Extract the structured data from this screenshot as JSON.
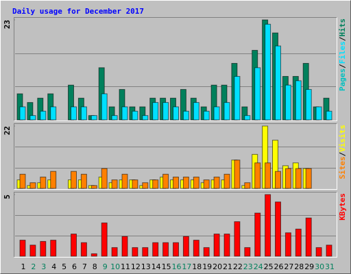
{
  "chart_data": {
    "type": "bar",
    "title": "Daily usage for December 2017",
    "title_color": "#0000ff",
    "categories": [
      "1",
      "2",
      "3",
      "4",
      "5",
      "6",
      "7",
      "8",
      "9",
      "10",
      "11",
      "12",
      "13",
      "14",
      "15",
      "16",
      "17",
      "18",
      "19",
      "20",
      "21",
      "22",
      "23",
      "24",
      "25",
      "26",
      "27",
      "28",
      "29",
      "30",
      "31"
    ],
    "category_colors": [
      "#000000",
      "#00805c",
      "#00805c",
      "#000000",
      "#000000",
      "#000000",
      "#000000",
      "#000000",
      "#00805c",
      "#00805c",
      "#000000",
      "#000000",
      "#000000",
      "#000000",
      "#000000",
      "#00805c",
      "#00805c",
      "#000000",
      "#000000",
      "#000000",
      "#000000",
      "#000000",
      "#00805c",
      "#00805c",
      "#000000",
      "#000000",
      "#000000",
      "#000000",
      "#000000",
      "#00805c",
      "#00805c"
    ],
    "separator": "/",
    "panels": [
      {
        "ylim": [
          0,
          23
        ],
        "yticks": [
          23
        ],
        "legend_prefix": "Pages",
        "legend_prefix_color": "#00c0c0",
        "series": [
          {
            "name": "Hits",
            "color": "#00805c",
            "values": [
              6,
              4,
              5,
              6,
              0,
              8,
              5,
              1,
              12,
              3,
              7,
              3,
              3,
              5,
              5,
              5,
              7,
              5,
              3,
              8,
              8,
              13,
              3,
              16,
              23,
              20,
              10,
              10,
              13,
              3,
              5
            ]
          },
          {
            "name": "Files",
            "color": "#00e0ff",
            "values": [
              3,
              1,
              2,
              3,
              0,
              3,
              3,
              1,
              6,
              1,
              3,
              2,
              1,
              4,
              4,
              3,
              2,
              4,
              2,
              3,
              4,
              10,
              1,
              12,
              22,
              17,
              8,
              9,
              7,
              3,
              2
            ]
          }
        ]
      },
      {
        "ylim": [
          0,
          22
        ],
        "yticks": [
          22
        ],
        "series": [
          {
            "name": "Visits",
            "color": "#ffff00",
            "values": [
              3,
              1,
              2,
              3,
              0,
              3,
              3,
              1,
              4,
              2,
              3,
              3,
              1,
              3,
              4,
              3,
              3,
              3,
              2,
              3,
              3,
              10,
              1,
              12,
              22,
              17,
              8,
              9,
              7,
              0,
              0
            ]
          },
          {
            "name": "Sites",
            "color": "#ff8000",
            "values": [
              5,
              2,
              4,
              6,
              0,
              6,
              5,
              1,
              7,
              3,
              5,
              3,
              2,
              3,
              5,
              4,
              4,
              4,
              3,
              4,
              5,
              10,
              2,
              9,
              9,
              6,
              7,
              7,
              7,
              0,
              0
            ]
          }
        ]
      },
      {
        "ylim": [
          0,
          5
        ],
        "yticks": [
          5
        ],
        "series": [
          {
            "name": "KBytes",
            "color": "#ff0000",
            "values": [
              1.3,
              0.9,
              1.2,
              1.3,
              0,
              1.8,
              1.1,
              0.2,
              2.7,
              0.7,
              1.6,
              0.7,
              0.7,
              1.1,
              1.1,
              1.1,
              1.6,
              1.3,
              0.7,
              1.8,
              1.8,
              2.8,
              0.7,
              3.5,
              5,
              4.4,
              1.9,
              2.2,
              3.1,
              0.7,
              0.9
            ]
          }
        ]
      }
    ]
  }
}
